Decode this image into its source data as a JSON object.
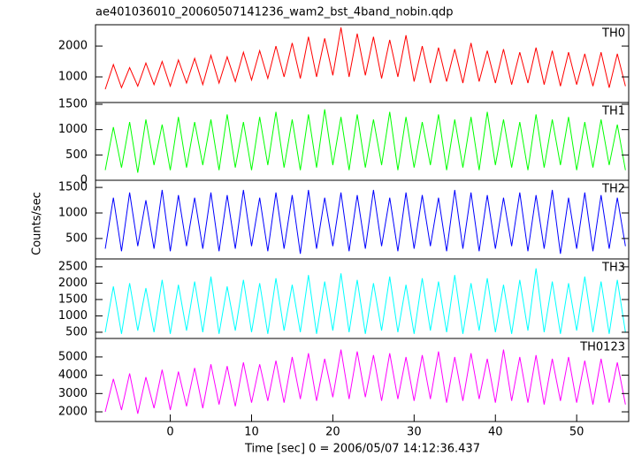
{
  "chart_data": [
    {
      "type": "line",
      "title": "ae401036010_20060507141236_wam2_bst_4band_nobin.qdp",
      "x": [
        -8,
        -7,
        -6,
        -5,
        -4,
        -3,
        -2,
        -1,
        0,
        1,
        2,
        3,
        4,
        5,
        6,
        7,
        8,
        9,
        10,
        11,
        12,
        13,
        14,
        15,
        16,
        17,
        18,
        19,
        20,
        21,
        22,
        23,
        24,
        25,
        26,
        27,
        28,
        29,
        30,
        31,
        32,
        33,
        34,
        35,
        36,
        37,
        38,
        39,
        40,
        41,
        42,
        43,
        44,
        45,
        46,
        47,
        48,
        49,
        50,
        51,
        52,
        53,
        54,
        55,
        56
      ],
      "series": [
        {
          "name": "TH0",
          "color": "#ff0000",
          "values": [
            600,
            1400,
            650,
            1300,
            700,
            1450,
            750,
            1500,
            700,
            1550,
            800,
            1600,
            750,
            1700,
            800,
            1650,
            850,
            1800,
            900,
            1850,
            950,
            2000,
            1000,
            2100,
            950,
            2300,
            1000,
            2250,
            1050,
            2600,
            1000,
            2400,
            1050,
            2300,
            950,
            2200,
            1000,
            2350,
            850,
            2000,
            800,
            1950,
            850,
            1900,
            800,
            2100,
            850,
            1850,
            800,
            1900,
            750,
            1800,
            800,
            1950,
            750,
            1850,
            700,
            1800,
            750,
            1750,
            700,
            1800,
            650,
            1750,
            700
          ]
        }
      ],
      "xlim": [
        -9.2,
        56.4
      ],
      "ylim": [
        170,
        2690
      ],
      "yticks": [
        1000,
        2000
      ]
    },
    {
      "type": "line",
      "x": [
        -8,
        -7,
        -6,
        -5,
        -4,
        -3,
        -2,
        -1,
        0,
        1,
        2,
        3,
        4,
        5,
        6,
        7,
        8,
        9,
        10,
        11,
        12,
        13,
        14,
        15,
        16,
        17,
        18,
        19,
        20,
        21,
        22,
        23,
        24,
        25,
        26,
        27,
        28,
        29,
        30,
        31,
        32,
        33,
        34,
        35,
        36,
        37,
        38,
        39,
        40,
        41,
        42,
        43,
        44,
        45,
        46,
        47,
        48,
        49,
        50,
        51,
        52,
        53,
        54,
        55,
        56
      ],
      "series": [
        {
          "name": "TH1",
          "color": "#00ff00",
          "values": [
            200,
            1050,
            250,
            1150,
            150,
            1200,
            300,
            1100,
            200,
            1250,
            250,
            1150,
            300,
            1200,
            200,
            1300,
            250,
            1150,
            200,
            1250,
            300,
            1350,
            250,
            1200,
            200,
            1300,
            250,
            1400,
            300,
            1250,
            200,
            1300,
            250,
            1200,
            300,
            1350,
            200,
            1250,
            250,
            1150,
            300,
            1300,
            200,
            1200,
            250,
            1250,
            200,
            1350,
            300,
            1200,
            250,
            1150,
            200,
            1300,
            250,
            1200,
            300,
            1250,
            200,
            1150,
            250,
            1200,
            300,
            1100,
            200
          ]
        }
      ],
      "xlim": [
        -9.2,
        56.4
      ],
      "ylim": [
        0,
        1535
      ],
      "yticks": [
        0,
        500,
        1000,
        1500
      ]
    },
    {
      "type": "line",
      "ylabel": "Counts/sec",
      "x": [
        -8,
        -7,
        -6,
        -5,
        -4,
        -3,
        -2,
        -1,
        0,
        1,
        2,
        3,
        4,
        5,
        6,
        7,
        8,
        9,
        10,
        11,
        12,
        13,
        14,
        15,
        16,
        17,
        18,
        19,
        20,
        21,
        22,
        23,
        24,
        25,
        26,
        27,
        28,
        29,
        30,
        31,
        32,
        33,
        34,
        35,
        36,
        37,
        38,
        39,
        40,
        41,
        42,
        43,
        44,
        45,
        46,
        47,
        48,
        49,
        50,
        51,
        52,
        53,
        54,
        55,
        56
      ],
      "series": [
        {
          "name": "TH2",
          "color": "#0000ff",
          "values": [
            300,
            1300,
            250,
            1400,
            350,
            1250,
            300,
            1450,
            250,
            1350,
            350,
            1300,
            300,
            1400,
            250,
            1350,
            300,
            1450,
            350,
            1300,
            250,
            1400,
            300,
            1350,
            200,
            1450,
            300,
            1300,
            350,
            1400,
            250,
            1350,
            300,
            1450,
            350,
            1300,
            250,
            1400,
            300,
            1350,
            350,
            1300,
            250,
            1450,
            300,
            1400,
            250,
            1350,
            300,
            1300,
            350,
            1400,
            250,
            1350,
            300,
            1450,
            200,
            1300,
            300,
            1400,
            250,
            1350,
            300,
            1300,
            350
          ]
        }
      ],
      "xlim": [
        -9.2,
        56.4
      ],
      "ylim": [
        100,
        1640
      ],
      "yticks": [
        500,
        1000,
        1500
      ]
    },
    {
      "type": "line",
      "x": [
        -8,
        -7,
        -6,
        -5,
        -4,
        -3,
        -2,
        -1,
        0,
        1,
        2,
        3,
        4,
        5,
        6,
        7,
        8,
        9,
        10,
        11,
        12,
        13,
        14,
        15,
        16,
        17,
        18,
        19,
        20,
        21,
        22,
        23,
        24,
        25,
        26,
        27,
        28,
        29,
        30,
        31,
        32,
        33,
        34,
        35,
        36,
        37,
        38,
        39,
        40,
        41,
        42,
        43,
        44,
        45,
        46,
        47,
        48,
        49,
        50,
        51,
        52,
        53,
        54,
        55,
        56
      ],
      "series": [
        {
          "name": "TH3",
          "color": "#00ffff",
          "values": [
            500,
            1900,
            450,
            2000,
            550,
            1850,
            500,
            2100,
            450,
            1950,
            550,
            2050,
            500,
            2200,
            450,
            1900,
            550,
            2100,
            500,
            2000,
            450,
            2150,
            550,
            1950,
            500,
            2250,
            450,
            2050,
            550,
            2300,
            500,
            2100,
            450,
            2000,
            550,
            2200,
            500,
            1950,
            450,
            2150,
            550,
            2050,
            500,
            2250,
            450,
            2000,
            550,
            2150,
            500,
            1950,
            450,
            2100,
            550,
            2450,
            500,
            2050,
            450,
            2000,
            550,
            2200,
            500,
            2050,
            450,
            2100,
            500
          ]
        }
      ],
      "xlim": [
        -9.2,
        56.4
      ],
      "ylim": [
        310,
        2740
      ],
      "yticks": [
        500,
        1000,
        1500,
        2000,
        2500
      ]
    },
    {
      "type": "line",
      "xlabel": "Time [sec] 0 = 2006/05/07 14:12:36.437",
      "x": [
        -8,
        -7,
        -6,
        -5,
        -4,
        -3,
        -2,
        -1,
        0,
        1,
        2,
        3,
        4,
        5,
        6,
        7,
        8,
        9,
        10,
        11,
        12,
        13,
        14,
        15,
        16,
        17,
        18,
        19,
        20,
        21,
        22,
        23,
        24,
        25,
        26,
        27,
        28,
        29,
        30,
        31,
        32,
        33,
        34,
        35,
        36,
        37,
        38,
        39,
        40,
        41,
        42,
        43,
        44,
        45,
        46,
        47,
        48,
        49,
        50,
        51,
        52,
        53,
        54,
        55,
        56
      ],
      "series": [
        {
          "name": "TH0123",
          "color": "#ff00ff",
          "values": [
            2000,
            3800,
            2100,
            4100,
            1900,
            3900,
            2200,
            4300,
            2100,
            4200,
            2300,
            4400,
            2200,
            4600,
            2400,
            4500,
            2300,
            4700,
            2500,
            4600,
            2600,
            4800,
            2500,
            5000,
            2700,
            5200,
            2600,
            4900,
            2800,
            5400,
            2700,
            5300,
            2800,
            5100,
            2600,
            5200,
            2700,
            5000,
            2600,
            5100,
            2700,
            5300,
            2500,
            5000,
            2600,
            5200,
            2700,
            4900,
            2500,
            5400,
            2600,
            5000,
            2500,
            5100,
            2400,
            4900,
            2600,
            5000,
            2500,
            4800,
            2400,
            4900,
            2500,
            4700,
            2400
          ]
        }
      ],
      "xlim": [
        -9.2,
        56.4
      ],
      "ylim": [
        1470,
        6010
      ],
      "yticks": [
        2000,
        3000,
        4000,
        5000
      ],
      "xticks": [
        0,
        10,
        20,
        30,
        40,
        50
      ]
    }
  ]
}
